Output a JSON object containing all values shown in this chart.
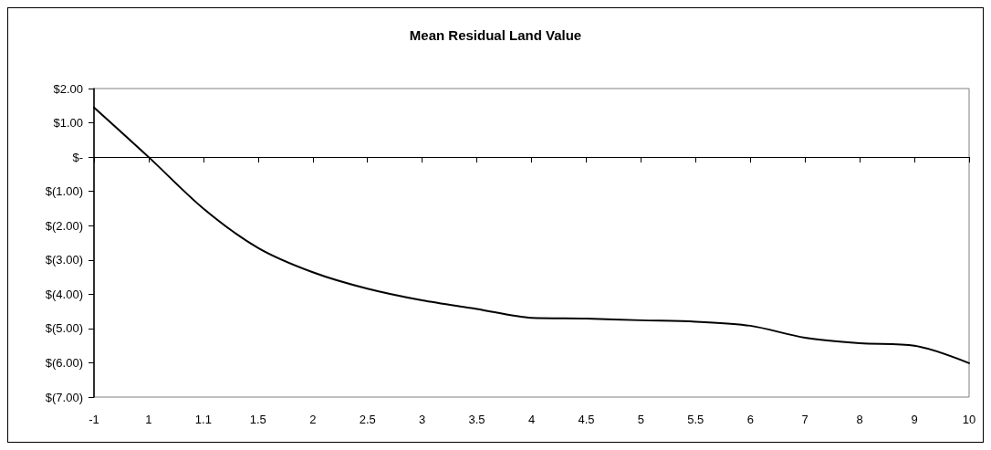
{
  "chart_data": {
    "type": "line",
    "title": "Mean Residual Land Value",
    "categories": [
      "-1",
      "1",
      "1.1",
      "1.5",
      "2",
      "2.5",
      "3",
      "3.5",
      "4",
      "4.5",
      "5",
      "5.5",
      "6",
      "7",
      "8",
      "9",
      "10"
    ],
    "values": [
      1.45,
      0.0,
      -1.5,
      -2.65,
      -3.36,
      -3.84,
      -4.18,
      -4.43,
      -4.69,
      -4.71,
      -4.76,
      -4.8,
      -4.92,
      -5.27,
      -5.43,
      -5.5,
      -6.01
    ],
    "color": "#000000",
    "ylim": [
      -7,
      2
    ],
    "yticks": [
      {
        "value": 2,
        "label": "$2.00"
      },
      {
        "value": 1,
        "label": "$1.00"
      },
      {
        "value": 0,
        "label": "$-"
      },
      {
        "value": -1,
        "label": "$(1.00)"
      },
      {
        "value": -2,
        "label": "$(2.00)"
      },
      {
        "value": -3,
        "label": "$(3.00)"
      },
      {
        "value": -4,
        "label": "$(4.00)"
      },
      {
        "value": -5,
        "label": "$(5.00)"
      },
      {
        "value": -6,
        "label": "$(6.00)"
      },
      {
        "value": -7,
        "label": "$(7.00)"
      }
    ],
    "marker": "none",
    "line_style": "solid"
  }
}
